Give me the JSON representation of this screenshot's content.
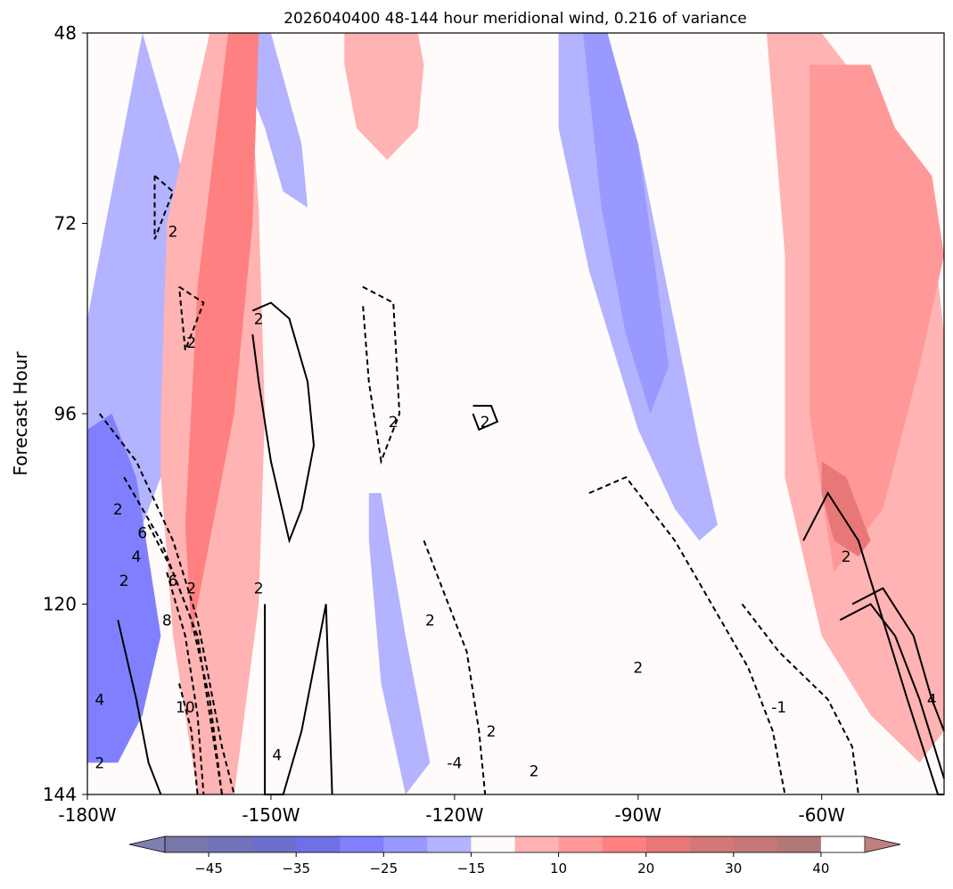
{
  "chart_data": {
    "type": "heatmap",
    "title": "2026040400 48-144 hour meridional wind, 0.216 of variance",
    "xlabel": "",
    "ylabel": "Forecast Hour",
    "xlim": [
      -180,
      -40
    ],
    "ylim": [
      48,
      144
    ],
    "y_inverted": true,
    "x_ticks": [
      -180,
      -150,
      -120,
      -90,
      -60
    ],
    "x_tick_labels": [
      "-180W",
      "-150W",
      "-120W",
      "-90W",
      "-60W"
    ],
    "y_ticks": [
      48,
      72,
      96,
      120,
      144
    ],
    "y_tick_labels": [
      "48",
      "72",
      "96",
      "120",
      "144"
    ],
    "colorbar": {
      "orientation": "horizontal",
      "extend": "both",
      "levels": [
        -50,
        -45,
        -40,
        -35,
        -30,
        -25,
        -20,
        -15,
        -10,
        10,
        15,
        20,
        25,
        30,
        35,
        40,
        45
      ],
      "colors": [
        "#7777a8",
        "#7272b8",
        "#6d6dcc",
        "#6f6fe6",
        "#8080ff",
        "#9999ff",
        "#b3b3ff",
        "#fffbfb",
        "#ffb3b3",
        "#ff9999",
        "#ff8080",
        "#e87878",
        "#d47777",
        "#c57777",
        "#b27777"
      ],
      "under_color": "#8080b0",
      "over_color": "#c08080",
      "tick_values": [
        -45,
        -35,
        -25,
        -15,
        10,
        20,
        30,
        40
      ],
      "tick_labels": [
        "−45",
        "−35",
        "−25",
        "−15",
        "10",
        "20",
        "30",
        "40"
      ]
    },
    "filled_bands": [
      {
        "sign": "negative",
        "level": -15,
        "color": "#b3b3ff",
        "axis_x": [
          -171,
          -168,
          -165,
          -163,
          -164,
          -166,
          -168,
          -172,
          -175,
          -178,
          -180,
          -180,
          -177,
          -174
        ],
        "axis_y": [
          48,
          56,
          64,
          72,
          84,
          96,
          104,
          112,
          124,
          134,
          140,
          84,
          72,
          60
        ]
      },
      {
        "sign": "negative",
        "level": -25,
        "color": "#8080ff",
        "axis_x": [
          -176,
          -172,
          -170,
          -168,
          -171,
          -175,
          -180,
          -180
        ],
        "axis_y": [
          96,
          104,
          114,
          124,
          134,
          140,
          140,
          98
        ]
      },
      {
        "sign": "negative",
        "level": -15,
        "color": "#b3b3ff",
        "axis_x": [
          -156,
          -150,
          -145,
          -144,
          -148,
          -151,
          -156
        ],
        "axis_y": [
          48,
          48,
          62,
          70,
          68,
          60,
          50
        ]
      },
      {
        "sign": "negative",
        "level": -15,
        "color": "#b3b3ff",
        "axis_x": [
          -103,
          -96,
          -90,
          -80,
          -77,
          -80,
          -84,
          -90,
          -98,
          -103
        ],
        "axis_y": [
          48,
          48,
          62,
          100,
          110,
          112,
          108,
          98,
          78,
          60
        ]
      },
      {
        "sign": "negative",
        "level": -25,
        "color": "#9999ff",
        "axis_x": [
          -99,
          -95,
          -90,
          -85,
          -88,
          -92,
          -96
        ],
        "axis_y": [
          48,
          48,
          62,
          90,
          96,
          86,
          70
        ]
      },
      {
        "sign": "negative",
        "level": -15,
        "color": "#b3b3ff",
        "axis_x": [
          -134,
          -132,
          -128,
          -124,
          -128,
          -132,
          -134
        ],
        "axis_y": [
          106,
          106,
          124,
          140,
          144,
          130,
          112
        ]
      },
      {
        "sign": "positive",
        "level": 10,
        "color": "#ffb3b3",
        "axis_x": [
          -160,
          -154,
          -152,
          -151,
          -152,
          -156,
          -162,
          -166,
          -168,
          -168,
          -167
        ],
        "axis_y": [
          48,
          48,
          70,
          96,
          120,
          144,
          144,
          124,
          104,
          96,
          72
        ]
      },
      {
        "sign": "positive",
        "level": 20,
        "color": "#ff8080",
        "axis_x": [
          -157,
          -152,
          -153,
          -156,
          -160,
          -163,
          -164,
          -162
        ],
        "axis_y": [
          48,
          48,
          72,
          96,
          112,
          124,
          110,
          80
        ]
      },
      {
        "sign": "positive",
        "level": 10,
        "color": "#ffb3b3",
        "axis_x": [
          -138,
          -126,
          -125,
          -126,
          -131,
          -136,
          -138
        ],
        "axis_y": [
          48,
          48,
          52,
          60,
          64,
          60,
          52
        ]
      },
      {
        "sign": "positive",
        "level": 10,
        "color": "#ffb3b3",
        "axis_x": [
          -69,
          -60,
          -48,
          -42,
          -40,
          -40,
          -44,
          -52,
          -60,
          -66,
          -66
        ],
        "axis_y": [
          48,
          48,
          60,
          72,
          86,
          136,
          140,
          134,
          124,
          104,
          76
        ]
      },
      {
        "sign": "positive",
        "level": 20,
        "color": "#ff9999",
        "axis_x": [
          -62,
          -52,
          -48,
          -42,
          -40,
          -44,
          -50,
          -58,
          -62
        ],
        "axis_y": [
          52,
          52,
          60,
          66,
          76,
          90,
          108,
          116,
          96
        ]
      },
      {
        "sign": "positive",
        "level": 25,
        "color": "#e87878",
        "axis_x": [
          -60,
          -56,
          -52,
          -54,
          -58,
          -60
        ],
        "axis_y": [
          102,
          104,
          112,
          114,
          112,
          106
        ]
      }
    ],
    "contours": [
      {
        "value": 2,
        "style": "solid",
        "axis_x": [
          -153,
          -150,
          -147,
          -144,
          -143,
          -145,
          -147,
          -150,
          -152,
          -153
        ],
        "axis_y": [
          83,
          82,
          84,
          92,
          100,
          108,
          112,
          102,
          92,
          86
        ]
      },
      {
        "value": 2,
        "style": "solid",
        "axis_x": [
          -151,
          -151,
          -148,
          -145,
          -143,
          -141,
          -140
        ],
        "axis_y": [
          120,
          144,
          144,
          136,
          128,
          120,
          144
        ]
      },
      {
        "value": 2,
        "style": "solid",
        "axis_x": [
          -117,
          -114,
          -113,
          -116,
          -117
        ],
        "axis_y": [
          95,
          95,
          97,
          98,
          96
        ]
      },
      {
        "value": 2,
        "style": "solid",
        "axis_x": [
          -63,
          -59,
          -54,
          -50,
          -46,
          -41,
          -40
        ],
        "axis_y": [
          112,
          106,
          112,
          122,
          132,
          144,
          144
        ]
      },
      {
        "value": 2,
        "style": "solid",
        "axis_x": [
          -57,
          -52,
          -48,
          -44,
          -40
        ],
        "axis_y": [
          122,
          120,
          124,
          132,
          142
        ]
      },
      {
        "value": 4,
        "style": "solid",
        "axis_x": [
          -175,
          -172,
          -170,
          -168
        ],
        "axis_y": [
          122,
          132,
          140,
          144
        ]
      },
      {
        "value": 4,
        "style": "solid",
        "axis_x": [
          -55,
          -50,
          -45,
          -42,
          -40
        ],
        "axis_y": [
          120,
          118,
          124,
          132,
          136
        ]
      },
      {
        "value": -2,
        "style": "dashed",
        "axis_x": [
          -169,
          -166,
          -169,
          -169
        ],
        "axis_y": [
          66,
          68,
          74,
          66
        ]
      },
      {
        "value": -2,
        "style": "dashed",
        "axis_x": [
          -165,
          -161,
          -164,
          -165
        ],
        "axis_y": [
          80,
          82,
          88,
          80
        ]
      },
      {
        "value": -2,
        "style": "dashed",
        "axis_x": [
          -135,
          -130,
          -129,
          -132,
          -134,
          -135
        ],
        "axis_y": [
          80,
          82,
          96,
          102,
          92,
          82
        ]
      },
      {
        "value": -2,
        "style": "dashed",
        "axis_x": [
          -178,
          -172,
          -166,
          -162,
          -160,
          -158,
          -156
        ],
        "axis_y": [
          96,
          102,
          112,
          122,
          130,
          138,
          144
        ]
      },
      {
        "value": -2,
        "style": "dashed",
        "axis_x": [
          -125,
          -122,
          -118,
          -116,
          -115
        ],
        "axis_y": [
          112,
          118,
          126,
          136,
          144
        ]
      },
      {
        "value": -2,
        "style": "dashed",
        "axis_x": [
          -98,
          -92,
          -84,
          -78,
          -72,
          -68,
          -66
        ],
        "axis_y": [
          106,
          104,
          112,
          120,
          128,
          136,
          144
        ]
      },
      {
        "value": -2,
        "style": "dashed",
        "axis_x": [
          -73,
          -67,
          -59,
          -55,
          -54
        ],
        "axis_y": [
          120,
          126,
          132,
          138,
          144
        ]
      },
      {
        "value": -4,
        "style": "dashed",
        "axis_x": [
          -174,
          -168,
          -163,
          -160,
          -158
        ],
        "axis_y": [
          104,
          112,
          122,
          132,
          144
        ]
      },
      {
        "value": -6,
        "style": "dashed",
        "axis_x": [
          -170,
          -166,
          -162,
          -160,
          -158
        ],
        "axis_y": [
          110,
          116,
          124,
          134,
          144
        ]
      },
      {
        "value": -8,
        "style": "dashed",
        "axis_x": [
          -167,
          -164,
          -162,
          -161
        ],
        "axis_y": [
          116,
          124,
          134,
          144
        ]
      },
      {
        "value": -10,
        "style": "dashed",
        "axis_x": [
          -165,
          -163,
          -162
        ],
        "axis_y": [
          130,
          136,
          144
        ]
      }
    ],
    "contour_labels": [
      {
        "text": "2",
        "x": -166,
        "y": 73
      },
      {
        "text": "2",
        "x": -152,
        "y": 84
      },
      {
        "text": "2",
        "x": -163,
        "y": 87
      },
      {
        "text": "2",
        "x": -130,
        "y": 97
      },
      {
        "text": "2",
        "x": -115,
        "y": 97
      },
      {
        "text": "2",
        "x": -175,
        "y": 108
      },
      {
        "text": "6",
        "x": -171,
        "y": 111
      },
      {
        "text": "4",
        "x": -172,
        "y": 114
      },
      {
        "text": "2",
        "x": -174,
        "y": 117
      },
      {
        "text": "6",
        "x": -166,
        "y": 117
      },
      {
        "text": "2",
        "x": -163,
        "y": 118
      },
      {
        "text": "2",
        "x": -152,
        "y": 118
      },
      {
        "text": "8",
        "x": -167,
        "y": 122
      },
      {
        "text": "2",
        "x": -124,
        "y": 122
      },
      {
        "text": "2",
        "x": -90,
        "y": 128
      },
      {
        "text": "4",
        "x": -178,
        "y": 132
      },
      {
        "text": "10",
        "x": -164,
        "y": 133
      },
      {
        "text": "2",
        "x": -114,
        "y": 136
      },
      {
        "text": "4",
        "x": -149,
        "y": 139
      },
      {
        "text": "2",
        "x": -178,
        "y": 140
      },
      {
        "text": "-4",
        "x": -120,
        "y": 140
      },
      {
        "text": "2",
        "x": -107,
        "y": 141
      },
      {
        "text": "2",
        "x": -56,
        "y": 114
      },
      {
        "text": "4",
        "x": -42,
        "y": 132
      },
      {
        "text": "-1",
        "x": -67,
        "y": 133
      }
    ]
  }
}
